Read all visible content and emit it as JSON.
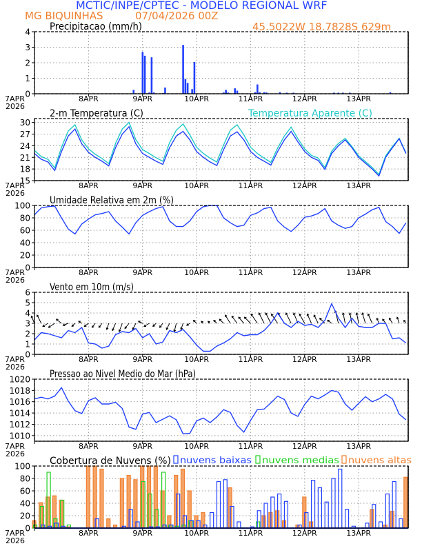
{
  "header": {
    "title": "MCTIC/INPE/CPTEC - MODELO REGIONAL WRF",
    "location": "MG BIQUINHAS",
    "run": "07/04/2026 00Z",
    "coords": "45.5022W 18.7828S 629m"
  },
  "colors": {
    "title": "#2846ff",
    "orange": "#f08030",
    "blue": "#2040ff",
    "cyan": "#20c8c8",
    "green": "#20d020",
    "arrow": "#000000"
  },
  "x_axis": {
    "tick_labels": [
      "7APR",
      "8APR",
      "9APR",
      "10APR",
      "11APR",
      "12APR",
      "13APR"
    ],
    "year_label": "2026",
    "start": "07APR 00Z",
    "end_hours": 166
  },
  "chart_data": [
    {
      "type": "bar",
      "title": "Precipitacao (mm/h)",
      "ylim": [
        0,
        4
      ],
      "yticks": [
        0,
        1,
        2,
        3,
        4
      ],
      "grid": true,
      "bars": [
        {
          "time": "08APR 20Z",
          "value": 0.25
        },
        {
          "time": "09APR 00Z",
          "value": 2.7
        },
        {
          "time": "09APR 01Z",
          "value": 2.45
        },
        {
          "time": "09APR 03Z",
          "value": 0.08
        },
        {
          "time": "09APR 04Z",
          "value": 2.35
        },
        {
          "time": "09APR 05Z",
          "value": 0.08
        },
        {
          "time": "09APR 09Z",
          "value": 0.05
        },
        {
          "time": "09APR 10Z",
          "value": 0.4
        },
        {
          "time": "09APR 18Z",
          "value": 3.15
        },
        {
          "time": "09APR 19Z",
          "value": 0.95
        },
        {
          "time": "09APR 20Z",
          "value": 0.7
        },
        {
          "time": "09APR 22Z",
          "value": 0.3
        },
        {
          "time": "09APR 23Z",
          "value": 2.05
        },
        {
          "time": "10APR 12Z",
          "value": 0.08
        },
        {
          "time": "10APR 13Z",
          "value": 0.25
        },
        {
          "time": "10APR 14Z",
          "value": 0.08
        },
        {
          "time": "10APR 17Z",
          "value": 0.35
        },
        {
          "time": "10APR 18Z",
          "value": 0.2
        },
        {
          "time": "11APR 02Z",
          "value": 0.1
        },
        {
          "time": "11APR 03Z",
          "value": 0.6
        },
        {
          "time": "11APR 04Z",
          "value": 0.1
        },
        {
          "time": "11APR 06Z",
          "value": 0.1
        },
        {
          "time": "11APR 07Z",
          "value": 0.08
        },
        {
          "time": "11APR 13Z",
          "value": 0.1
        },
        {
          "time": "11APR 16Z",
          "value": 0.07
        },
        {
          "time": "11APR 19Z",
          "value": 0.07
        },
        {
          "time": "12APR 13Z",
          "value": 0.07
        },
        {
          "time": "12APR 15Z",
          "value": 0.07
        },
        {
          "time": "12APR 17Z",
          "value": 0.07
        },
        {
          "time": "12APR 20Z",
          "value": 0.07
        },
        {
          "time": "13APR 14Z",
          "value": 0.1
        }
      ]
    },
    {
      "type": "line",
      "title": "2-m Temperatura (C)",
      "ylim": [
        15,
        31
      ],
      "yticks": [
        15,
        18,
        21,
        24,
        27,
        30
      ],
      "grid": true,
      "time_step_hours": 3,
      "series": [
        {
          "name": "2-m Temperatura (C)",
          "color": "#2040ff",
          "values": [
            22,
            20.5,
            19.8,
            17.6,
            22.5,
            26.5,
            28.3,
            24.5,
            22.3,
            21,
            20,
            18.8,
            23.5,
            27,
            28.9,
            24.5,
            22,
            21,
            20,
            19.2,
            23.5,
            26.5,
            27.7,
            25.5,
            22.5,
            21,
            19.8,
            18.9,
            23,
            26.5,
            27.6,
            25.5,
            22.5,
            21,
            20,
            19,
            22.5,
            25.5,
            27.7,
            25,
            22.5,
            21,
            20.2,
            17.9,
            22,
            24,
            25.5,
            23.5,
            21,
            19.5,
            18,
            16.2,
            21,
            23.5,
            25.8,
            22
          ]
        },
        {
          "name": "Temperatura Aparente (C)",
          "color": "#20c8c8",
          "values": [
            22.8,
            21.2,
            20.5,
            18.3,
            23.6,
            27.8,
            29.4,
            25.5,
            23.2,
            21.8,
            20.7,
            19.4,
            24.6,
            28.3,
            30,
            25.6,
            23,
            22,
            20.9,
            20,
            24.8,
            28,
            29.6,
            26.8,
            23.6,
            22,
            20.8,
            19.8,
            24.2,
            28,
            29.4,
            26.8,
            23.6,
            22,
            20.8,
            19.7,
            23.4,
            26.5,
            28.8,
            25.8,
            23.2,
            21.5,
            20.8,
            18.4,
            22.6,
            24.6,
            25.9,
            23.8,
            21.4,
            19.9,
            18.4,
            16.6,
            21.4,
            23.8,
            25.9,
            22.2
          ]
        }
      ]
    },
    {
      "type": "line",
      "title": "Umidade Relativa em 2m (%)",
      "ylim": [
        0,
        100
      ],
      "yticks": [
        0,
        20,
        40,
        60,
        80,
        100
      ],
      "grid": true,
      "time_step_hours": 3,
      "series": [
        {
          "color": "#2040ff",
          "values": [
            85,
            96,
            98,
            99,
            80,
            62,
            54,
            70,
            78,
            85,
            87,
            90,
            75,
            65,
            54,
            72,
            84,
            90,
            95,
            98,
            75,
            66,
            66,
            75,
            90,
            98,
            100,
            100,
            80,
            72,
            66,
            68,
            84,
            88,
            95,
            97,
            75,
            65,
            58,
            68,
            81,
            83,
            87,
            95,
            75,
            68,
            63,
            66,
            80,
            86,
            93,
            97,
            74,
            66,
            55,
            72
          ]
        }
      ]
    },
    {
      "type": "line",
      "title": "Vento em 10m (m/s)",
      "ylim": [
        0,
        6
      ],
      "yticks": [
        0,
        1,
        2,
        3,
        4,
        5,
        6
      ],
      "grid": true,
      "time_step_hours": 3,
      "series": [
        {
          "color": "#2040ff",
          "values": [
            1.4,
            2.1,
            2.0,
            1.8,
            1.6,
            2.3,
            2.1,
            2.6,
            1.1,
            1.0,
            0.6,
            0.8,
            1.9,
            2.2,
            2.1,
            2.5,
            1.6,
            2.0,
            1.0,
            1.2,
            2.3,
            2.1,
            2.4,
            1.7,
            0.9,
            0.3,
            0.3,
            0.8,
            1.1,
            1.5,
            2.1,
            1.8,
            1.9,
            1.9,
            2.3,
            3.0,
            4.0,
            3.0,
            2.6,
            3.2,
            2.8,
            2.9,
            2.6,
            3.3,
            4.9,
            3.5,
            2.6,
            3.5,
            2.7,
            2.6,
            2.6,
            3.0,
            3.0,
            1.5,
            1.6,
            1.1
          ]
        }
      ],
      "vectors": {
        "u": [
          -0.3,
          -0.4,
          -0.5,
          -0.6,
          -0.5,
          -0.5,
          -0.3,
          -0.3,
          -0.4,
          -0.3,
          -0.3,
          -0.2,
          -0.3,
          -0.3,
          -0.4,
          -0.3,
          -0.4,
          -0.5,
          -0.3,
          -0.3,
          -0.3,
          -0.2,
          -0.2,
          -0.3,
          -0.3,
          -0.2,
          -0.2,
          -0.3,
          -0.4,
          -0.5,
          -0.5,
          -0.5,
          -0.6,
          -0.6,
          -0.5,
          -0.5,
          -0.6,
          -0.6,
          -0.5,
          -0.4,
          -0.5,
          -0.4,
          -0.4,
          -0.5,
          -0.4,
          -0.3,
          -0.2,
          -0.2,
          -0.2,
          -0.3,
          -0.4,
          -0.2,
          -0.3,
          -0.3,
          -0.2,
          -0.2
        ],
        "v": [
          0.7,
          0.8,
          -0.3,
          -0.4,
          0.4,
          -0.2,
          -0.3,
          0.2,
          -0.3,
          -0.4,
          -0.4,
          -0.6,
          -0.7,
          -0.8,
          -0.5,
          -0.6,
          0.2,
          -0.3,
          -0.3,
          -0.4,
          -0.6,
          -0.8,
          -0.6,
          -0.2,
          0.3,
          0.2,
          0.2,
          0.3,
          0.4,
          0.8,
          0.7,
          0.6,
          0.6,
          0.9,
          1.0,
          1.0,
          0.9,
          1.0,
          1.0,
          1.0,
          0.9,
          0.9,
          0.8,
          0.5,
          0.3,
          1.2,
          1.0,
          1.0,
          1.0,
          1.0,
          0.9,
          0.5,
          0.4,
          0.5,
          0.6,
          0.3
        ]
      }
    },
    {
      "type": "line",
      "title": "Pressao ao Nivel Medio do Mar (hPa)",
      "ylim": [
        1009,
        1020
      ],
      "yticks": [
        1010,
        1012,
        1014,
        1016,
        1018,
        1020
      ],
      "grid": true,
      "time_step_hours": 3,
      "series": [
        {
          "color": "#2040ff",
          "values": [
            1016.5,
            1016.8,
            1016.5,
            1017,
            1018.5,
            1016.1,
            1014.4,
            1013.9,
            1016.2,
            1016.7,
            1015.6,
            1015.6,
            1015.9,
            1014.8,
            1011.5,
            1011.1,
            1013.8,
            1014.1,
            1012.3,
            1012.9,
            1013.5,
            1012.8,
            1010.3,
            1010.4,
            1012.6,
            1013.1,
            1012.3,
            1013.3,
            1014.6,
            1014.1,
            1011.8,
            1010.6,
            1012.7,
            1014.6,
            1014.7,
            1015.8,
            1017,
            1016.4,
            1014,
            1013.4,
            1015.5,
            1017,
            1016.5,
            1017.2,
            1018,
            1017.7,
            1015.6,
            1014.5,
            1015.7,
            1016.9,
            1016,
            1016.5,
            1017.3,
            1016.5,
            1013.8,
            1012.8
          ]
        }
      ]
    },
    {
      "type": "bar",
      "title": "Cobertura de Nuvens (%)",
      "ylim": [
        0,
        100
      ],
      "yticks": [
        0,
        20,
        40,
        60,
        80,
        100
      ],
      "grid": true,
      "time_step_hours": 3,
      "legend": "top",
      "series": [
        {
          "name": "nuvens altas",
          "color": "#f08030",
          "values": [
            12,
            41,
            50,
            52,
            45,
            2,
            0,
            0,
            100,
            100,
            95,
            15,
            5,
            80,
            85,
            78,
            100,
            100,
            100,
            60,
            20,
            85,
            95,
            60,
            20,
            25,
            0,
            0,
            0,
            65,
            0,
            0,
            0,
            0,
            20,
            25,
            28,
            12,
            0,
            5,
            50,
            10,
            0,
            0,
            0,
            0,
            0,
            0,
            0,
            0,
            30,
            0,
            5,
            27,
            0,
            82
          ]
        },
        {
          "name": "nuvens medias",
          "color": "#20d020",
          "values": [
            5,
            35,
            90,
            15,
            45,
            5,
            0,
            0,
            0,
            0,
            0,
            0,
            0,
            0,
            0,
            0,
            75,
            55,
            30,
            90,
            5,
            3,
            5,
            12,
            0,
            0,
            0,
            0,
            0,
            0,
            0,
            0,
            0,
            10,
            0,
            0,
            0,
            0,
            0,
            0,
            0,
            0,
            0,
            0,
            0,
            0,
            0,
            0,
            0,
            0,
            0,
            0,
            0,
            0,
            0,
            0
          ]
        },
        {
          "name": "nuvens baixas",
          "color": "#2040ff",
          "values": [
            0,
            5,
            3,
            8,
            3,
            0,
            0,
            0,
            0,
            15,
            0,
            0,
            0,
            3,
            30,
            10,
            0,
            2,
            2,
            5,
            5,
            55,
            20,
            12,
            12,
            5,
            25,
            75,
            78,
            35,
            10,
            0,
            2,
            28,
            40,
            50,
            55,
            43,
            0,
            5,
            25,
            77,
            65,
            42,
            80,
            95,
            30,
            3,
            0,
            8,
            38,
            10,
            55,
            75,
            15,
            0
          ]
        }
      ]
    }
  ]
}
